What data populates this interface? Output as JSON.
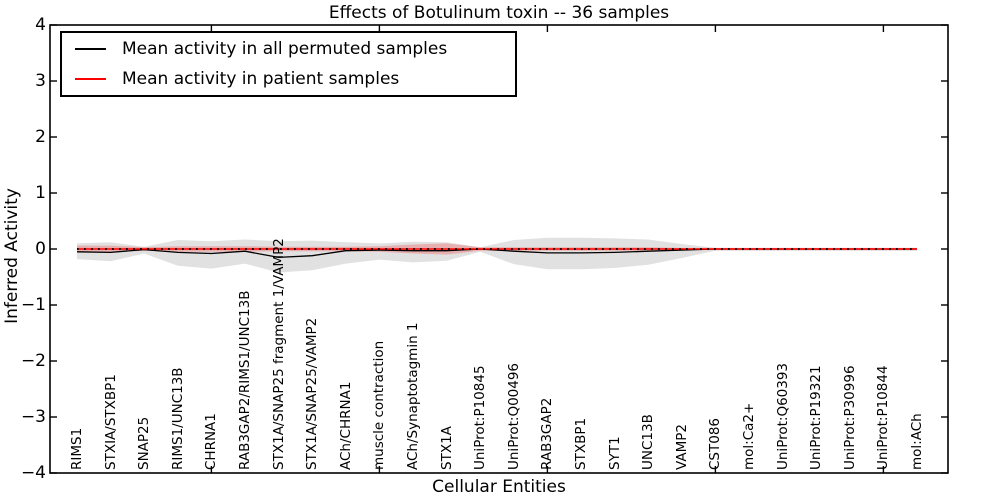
{
  "title": "Effects of Botulinum toxin -- 36 samples",
  "axes": {
    "xlabel": "Cellular Entities",
    "ylabel": "Inferred Activity",
    "ytick_values": [
      4,
      3,
      2,
      1,
      0,
      -1,
      -2,
      -3,
      -4
    ],
    "ytick_labels": [
      "4",
      "3",
      "2",
      "1",
      "0",
      "−1",
      "−2",
      "−3",
      "−4"
    ],
    "xtick_indices": [
      4,
      9,
      14,
      19,
      24
    ]
  },
  "legend": {
    "entries": [
      {
        "label": "Mean activity in all permuted samples",
        "color": "#000000"
      },
      {
        "label": "Mean activity in patient samples",
        "color": "#ff0000"
      }
    ]
  },
  "chart_data": {
    "type": "line",
    "title": "Effects of Botulinum toxin -- 36 samples",
    "xlabel": "Cellular Entities",
    "ylabel": "Inferred Activity",
    "ylim": [
      -4,
      4
    ],
    "grid": false,
    "legend_position": "upper left",
    "categories": [
      "RIMS1",
      "STXIA/STXBP1",
      "SNAP25",
      "RIMS1/UNC13B",
      "CHRNA1",
      "RAB3GAP2/RIMS1/UNC13B",
      "STX1A/SNAP25 fragment 1/VAMP2",
      "STX1A/SNAP25/VAMP2",
      "ACh/CHRNA1",
      "muscle contraction",
      "ACh/Synaptotagmin 1",
      "STX1A",
      "UniProt:P10845",
      "UniProt:Q00496",
      "RAB3GAP2",
      "STXBP1",
      "SYT1",
      "UNC13B",
      "VAMP2",
      "CST086",
      "mol:Ca2+",
      "UniProt:Q60393",
      "UniProt:P19321",
      "UniProt:P30996",
      "UniProt:P10844",
      "mol:ACh"
    ],
    "series": [
      {
        "name": "Mean activity in all permuted samples",
        "color": "#000000",
        "values": [
          -0.05,
          -0.06,
          -0.01,
          -0.06,
          -0.08,
          -0.04,
          -0.15,
          -0.12,
          -0.03,
          -0.02,
          -0.03,
          -0.03,
          0.0,
          -0.04,
          -0.07,
          -0.07,
          -0.06,
          -0.04,
          -0.02,
          0.0,
          0.0,
          0.0,
          0.0,
          0.0,
          0.0,
          0.0
        ]
      },
      {
        "name": "Mean activity in patient samples",
        "color": "#ff0000",
        "values": [
          0.0,
          0.0,
          0.0,
          0.0,
          0.0,
          0.0,
          0.0,
          0.0,
          0.0,
          0.0,
          0.0,
          0.0,
          0.0,
          0.0,
          0.0,
          0.0,
          0.0,
          0.0,
          0.0,
          0.0,
          0.0,
          0.0,
          0.0,
          0.0,
          0.0,
          0.0
        ]
      }
    ],
    "bands": [
      {
        "name": "permuted-sample-range",
        "color": "#e1e1e1",
        "upper": [
          0.1,
          0.12,
          0.04,
          0.16,
          0.14,
          0.17,
          0.14,
          0.15,
          0.12,
          0.1,
          0.13,
          0.12,
          0.03,
          0.16,
          0.2,
          0.2,
          0.19,
          0.17,
          0.09,
          0.02,
          0.02,
          0.02,
          0.02,
          0.02,
          0.02,
          0.02
        ],
        "lower": [
          -0.18,
          -0.22,
          -0.08,
          -0.3,
          -0.35,
          -0.26,
          -0.42,
          -0.38,
          -0.26,
          -0.19,
          -0.24,
          -0.21,
          -0.05,
          -0.27,
          -0.36,
          -0.36,
          -0.34,
          -0.28,
          -0.16,
          -0.03,
          -0.03,
          -0.03,
          -0.03,
          -0.03,
          -0.03,
          -0.03
        ]
      },
      {
        "name": "patient-sample-range",
        "color": "rgba(255,0,0,0.22)",
        "upper": [
          0.06,
          0.06,
          0.03,
          0.05,
          0.05,
          0.05,
          0.04,
          0.04,
          0.04,
          0.05,
          0.08,
          0.1,
          0.03,
          0.03,
          0.03,
          0.03,
          0.03,
          0.03,
          0.02,
          0.02,
          0.02,
          0.02,
          0.02,
          0.02,
          0.02,
          0.02
        ],
        "lower": [
          -0.06,
          -0.06,
          -0.03,
          -0.05,
          -0.05,
          -0.05,
          -0.04,
          -0.04,
          -0.04,
          -0.05,
          -0.08,
          -0.1,
          -0.03,
          -0.03,
          -0.03,
          -0.03,
          -0.03,
          -0.03,
          -0.02,
          -0.02,
          -0.02,
          -0.02,
          -0.02,
          -0.02,
          -0.02,
          -0.02
        ]
      }
    ],
    "baseline": {
      "value": 0,
      "color": "#000000",
      "style": "dotted"
    }
  }
}
